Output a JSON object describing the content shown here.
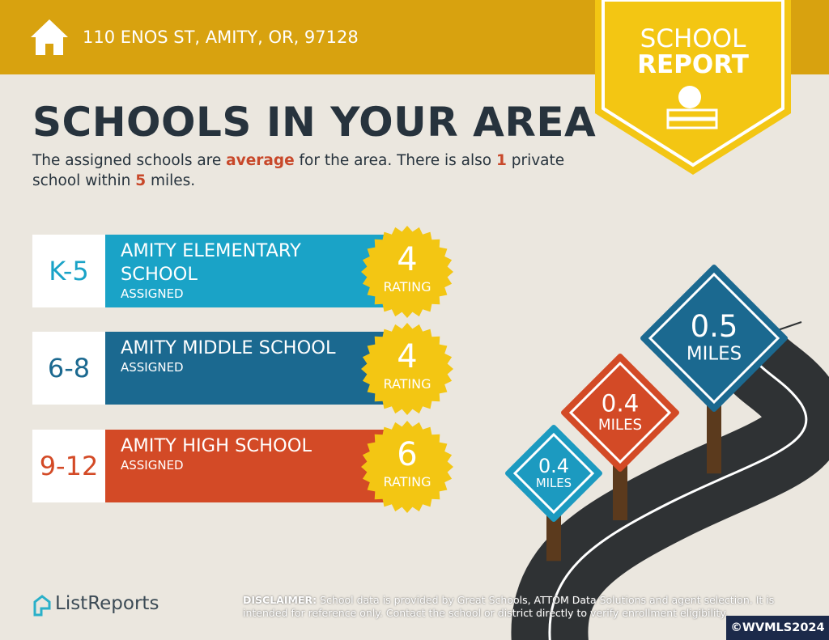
{
  "header": {
    "address": "110 ENOS ST, AMITY, OR, 97128"
  },
  "badge": {
    "line1": "SCHOOL",
    "line2": "REPORT"
  },
  "title": "SCHOOLS IN YOUR AREA",
  "summary": {
    "parts": [
      "The assigned schools are ",
      "average",
      " for the area. There is also ",
      "1",
      " private school within ",
      "5",
      " miles."
    ]
  },
  "schools": [
    {
      "grade": "K-5",
      "name": "AMITY ELEMENTARY SCHOOL",
      "status": "ASSIGNED",
      "rating": 4,
      "rating_label": "RATING"
    },
    {
      "grade": "6-8",
      "name": "AMITY MIDDLE SCHOOL",
      "status": "ASSIGNED",
      "rating": 4,
      "rating_label": "RATING"
    },
    {
      "grade": "9-12",
      "name": "AMITY HIGH SCHOOL",
      "status": "ASSIGNED",
      "rating": 6,
      "rating_label": "RATING"
    }
  ],
  "signs": [
    {
      "distance": 0.4,
      "unit": "MILES"
    },
    {
      "distance": 0.4,
      "unit": "MILES"
    },
    {
      "distance": 0.5,
      "unit": "MILES"
    }
  ],
  "footer": {
    "logo": "ListReports",
    "disclaimer_label": "DISCLAIMER:",
    "disclaimer": "School data is provided by Great Schools, ATTOM Data Solutions and agent selection. It is intended for reference only. Contact the school or district directly to verify enrollment eligibility.",
    "copyright": "©WVMLS2024"
  }
}
